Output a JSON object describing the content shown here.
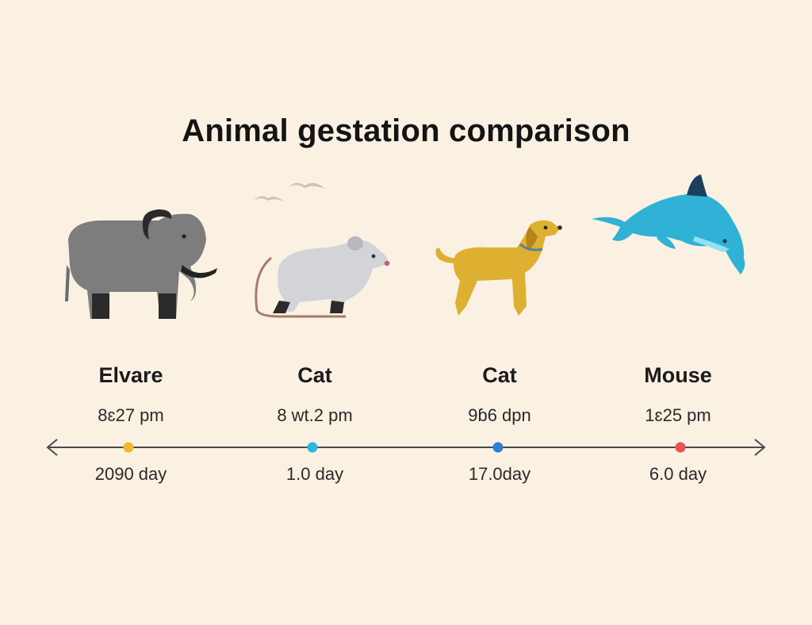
{
  "title": "Animal gestation comparison",
  "colors": {
    "background": "#fbf1e3",
    "elephant": "#7d7d7d",
    "mouse": "#cfd0d4",
    "dog": "#ddb032",
    "dolphin": "#2fb2d6",
    "dot_1": "#f0b92a",
    "dot_2": "#28b8e0",
    "dot_3": "#2f7fd4",
    "dot_4": "#ea5455"
  },
  "icons": [
    "elephant-icon",
    "mouse-icon",
    "dog-icon",
    "dolphin-icon",
    "birds-icon"
  ],
  "entries": [
    {
      "name": "Elvare",
      "time": "8ɛ27 pm",
      "days": "2090 day"
    },
    {
      "name": "Cat",
      "time": "8 wt.2 pm",
      "days": "1.0 day"
    },
    {
      "name": "Cat",
      "time": "9ɓ6 dpn",
      "days": "17.0day"
    },
    {
      "name": "Mouse",
      "time": "1ɛ25 pm",
      "days": "6.0 day"
    }
  ]
}
